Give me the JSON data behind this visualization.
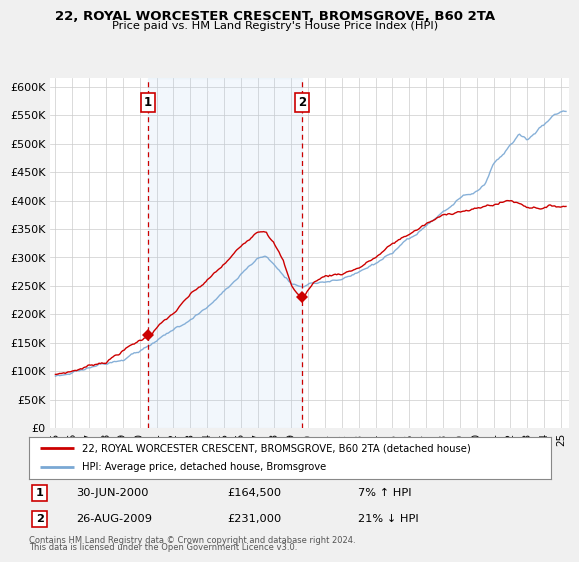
{
  "title": "22, ROYAL WORCESTER CRESCENT, BROMSGROVE, B60 2TA",
  "subtitle": "Price paid vs. HM Land Registry's House Price Index (HPI)",
  "ylabel_ticks": [
    "£0",
    "£50K",
    "£100K",
    "£150K",
    "£200K",
    "£250K",
    "£300K",
    "£350K",
    "£400K",
    "£450K",
    "£500K",
    "£550K",
    "£600K"
  ],
  "ytick_values": [
    0,
    50000,
    100000,
    150000,
    200000,
    250000,
    300000,
    350000,
    400000,
    450000,
    500000,
    550000,
    600000
  ],
  "ylim": [
    0,
    615000
  ],
  "sale1_x": 2000.5,
  "sale1_y": 164500,
  "sale2_x": 2009.65,
  "sale2_y": 231000,
  "vline1_x": 2000.5,
  "vline2_x": 2009.65,
  "sale1_date": "30-JUN-2000",
  "sale1_price": "£164,500",
  "sale1_hpi": "7% ↑ HPI",
  "sale2_date": "26-AUG-2009",
  "sale2_price": "£231,000",
  "sale2_hpi": "21% ↓ HPI",
  "legend_line1": "22, ROYAL WORCESTER CRESCENT, BROMSGROVE, B60 2TA (detached house)",
  "legend_line2": "HPI: Average price, detached house, Bromsgrove",
  "footer1": "Contains HM Land Registry data © Crown copyright and database right 2024.",
  "footer2": "This data is licensed under the Open Government Licence v3.0.",
  "xlim_left": 1994.7,
  "xlim_right": 2025.5,
  "background_color": "#f0f0f0",
  "plot_background": "#ffffff",
  "fill_color": "#ddeeff",
  "red_color": "#cc0000",
  "blue_color": "#7aa8d4",
  "grid_color": "#cccccc"
}
